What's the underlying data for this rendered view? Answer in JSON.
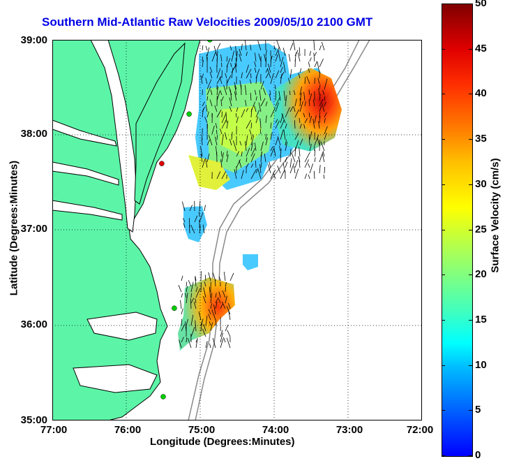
{
  "title": "Southern Mid-Atlantic Raw Velocities 2009/05/10 2100 GMT",
  "xlabel": "Longitude (Degrees:Minutes)",
  "ylabel": "Latitude (Degrees:Minutes)",
  "x_ticks": [
    "77:00",
    "76:00",
    "75:00",
    "74:00",
    "73:00",
    "72:00"
  ],
  "y_ticks": [
    "39:00",
    "38:00",
    "37:00",
    "36:00",
    "35:00"
  ],
  "colorbar": {
    "label": "Surface Velocity (cm/s)",
    "ticks": [
      "50",
      "45",
      "40",
      "35",
      "30",
      "25",
      "20",
      "15",
      "10",
      "5",
      "0"
    ],
    "range": [
      0,
      50
    ]
  },
  "map": {
    "lon_range": [
      -77,
      -72
    ],
    "lat_range": [
      35,
      39
    ],
    "land_color": "#5cf5a8",
    "water_color": "#ffffff",
    "grid": "dotted",
    "stations": [
      {
        "lon": -74.87,
        "lat": 39.0,
        "color": "#00d000"
      },
      {
        "lon": -75.15,
        "lat": 38.22,
        "color": "#00d000"
      },
      {
        "lon": -75.52,
        "lat": 37.7,
        "color": "#e00000"
      },
      {
        "lon": -75.35,
        "lat": 36.18,
        "color": "#00d000"
      },
      {
        "lon": -75.5,
        "lat": 35.25,
        "color": "#00d000"
      }
    ]
  }
}
